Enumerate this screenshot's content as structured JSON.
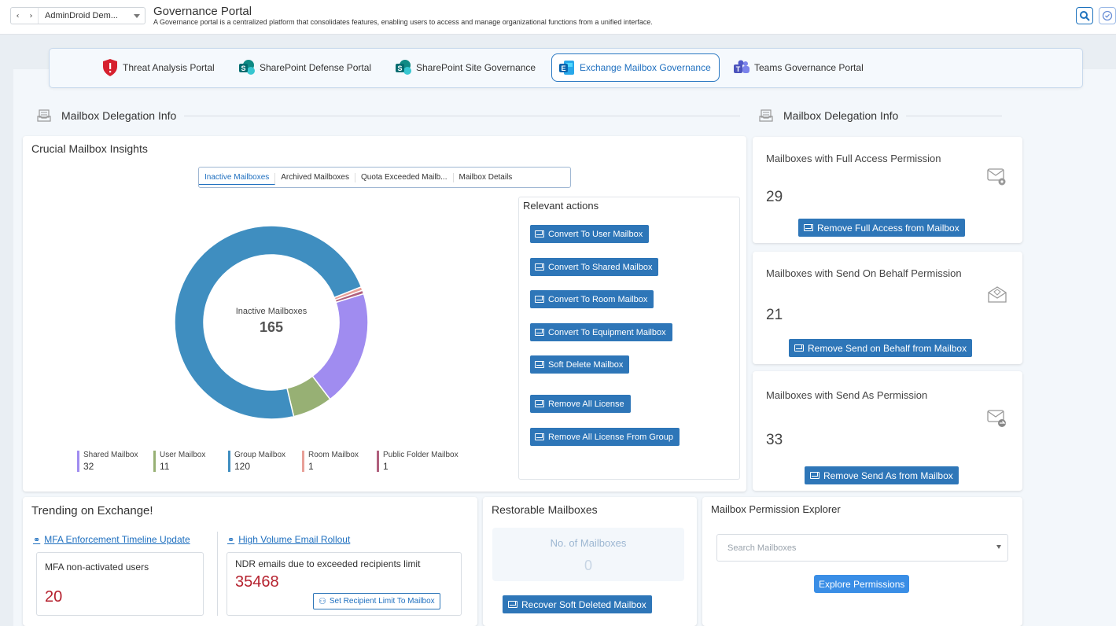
{
  "header": {
    "tenant": "AdminDroid Dem...",
    "title": "Governance Portal",
    "subtitle": "A Governance portal is a centralized platform that consolidates features, enabling users to access and manage organizational functions from a unified interface."
  },
  "portals": [
    {
      "label": "Threat Analysis Portal",
      "icon": "shield-icon",
      "color": "#d6202e"
    },
    {
      "label": "SharePoint Defense Portal",
      "icon": "sharepoint-icon",
      "color": "#0b7a75"
    },
    {
      "label": "SharePoint Site Governance",
      "icon": "sharepoint-icon",
      "color": "#0b7a75"
    },
    {
      "label": "Exchange Mailbox Governance",
      "icon": "exchange-icon",
      "color": "#1a73c9"
    },
    {
      "label": "Teams Governance Portal",
      "icon": "teams-icon",
      "color": "#5b5fc7"
    }
  ],
  "sections": {
    "left": "Mailbox Delegation Info",
    "right": "Mailbox Delegation Info"
  },
  "insights": {
    "title": "Crucial Mailbox Insights",
    "tabs": [
      "Inactive Mailboxes",
      "Archived Mailboxes",
      "Quota Exceeded Mailb...",
      "Mailbox Details"
    ],
    "center_label": "Inactive Mailboxes",
    "center_value": "165"
  },
  "chart_data": {
    "type": "pie",
    "categories": [
      "Shared Mailbox",
      "User Mailbox",
      "Group Mailbox",
      "Room Mailbox",
      "Public Folder Mailbox"
    ],
    "values": [
      32,
      11,
      120,
      1,
      1
    ],
    "colors": [
      "#a08cf0",
      "#97b074",
      "#3f8ec0",
      "#e8a098",
      "#b0607d"
    ]
  },
  "legend": [
    {
      "name": "Shared Mailbox",
      "value": "32",
      "color": "#a08cf0"
    },
    {
      "name": "User Mailbox",
      "value": "11",
      "color": "#97b074"
    },
    {
      "name": "Group Mailbox",
      "value": "120",
      "color": "#3f8ec0"
    },
    {
      "name": "Room Mailbox",
      "value": "1",
      "color": "#e8a098"
    },
    {
      "name": "Public Folder Mailbox",
      "value": "1",
      "color": "#b0607d"
    }
  ],
  "actions": {
    "title": "Relevant actions",
    "items": [
      "Convert To User Mailbox",
      "Convert To Shared Mailbox",
      "Convert To Room Mailbox",
      "Convert To Equipment Mailbox",
      "Soft Delete Mailbox",
      "Remove All License",
      "Remove All License From Group"
    ]
  },
  "permissions": [
    {
      "label": "Mailboxes with Full Access Permission",
      "value": "29",
      "button": "Remove Full Access from Mailbox"
    },
    {
      "label": "Mailboxes with Send On Behalf Permission",
      "value": "21",
      "button": "Remove Send on Behalf from Mailbox"
    },
    {
      "label": "Mailboxes with Send As Permission",
      "value": "33",
      "button": "Remove Send As from Mailbox"
    }
  ],
  "trending": {
    "title": "Trending on Exchange!",
    "left_link": "MFA Enforcement Timeline Update",
    "left_label": "MFA non-activated users",
    "left_value": "20",
    "right_link": "High Volume Email Rollout",
    "right_label": "NDR emails due to exceeded recipients limit",
    "right_value": "35468",
    "right_button": "Set Recipient Limit To Mailbox"
  },
  "restorable": {
    "title": "Restorable Mailboxes",
    "label": "No. of Mailboxes",
    "value": "0",
    "button": "Recover Soft Deleted Mailbox"
  },
  "explorer": {
    "title": "Mailbox Permission Explorer",
    "placeholder": "Search Mailboxes",
    "button": "Explore Permissions"
  }
}
